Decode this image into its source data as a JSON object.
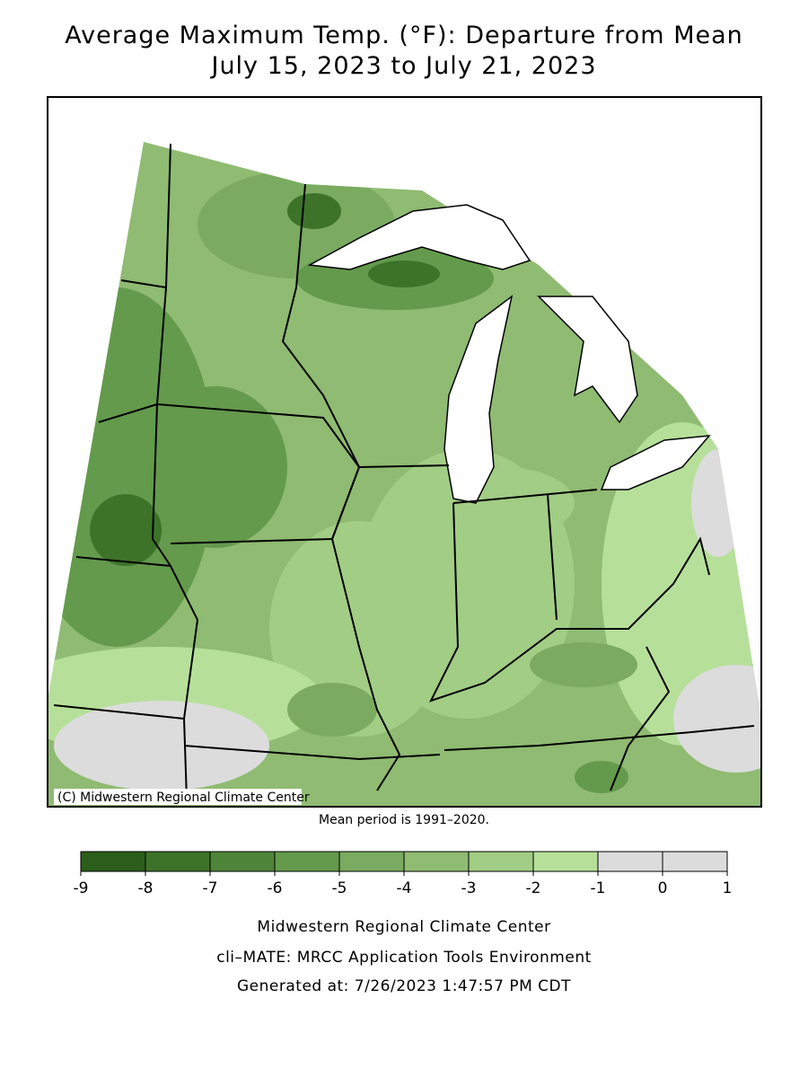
{
  "header": {
    "title": [
      "Average Maximum Temp. (°F): Departure from Mean",
      "July 15, 2023 to July 21, 2023"
    ]
  },
  "map": {
    "copyright": "(C) Midwestern Regional Climate Center",
    "note": "Mean period is 1991–2020."
  },
  "legend": {
    "bins": [
      -9,
      -8,
      -7,
      -6,
      -5,
      -4,
      -3,
      -2,
      -1,
      0,
      1
    ],
    "colors": [
      "#2a5e1a",
      "#3d7329",
      "#4e8538",
      "#649a4c",
      "#7aab61",
      "#8fbb72",
      "#a2cd85",
      "#b6e09a",
      "#dcdcdc",
      "#dcdcdc"
    ],
    "ticks": [
      -9,
      -8,
      -7,
      -6,
      -5,
      -4,
      -3,
      -2,
      -1,
      0,
      1
    ]
  },
  "footer": {
    "lines": [
      "Midwestern Regional Climate Center",
      "cli–MATE: MRCC Application Tools Environment",
      "Generated at: 7/26/2023 1:47:57 PM CDT"
    ]
  }
}
